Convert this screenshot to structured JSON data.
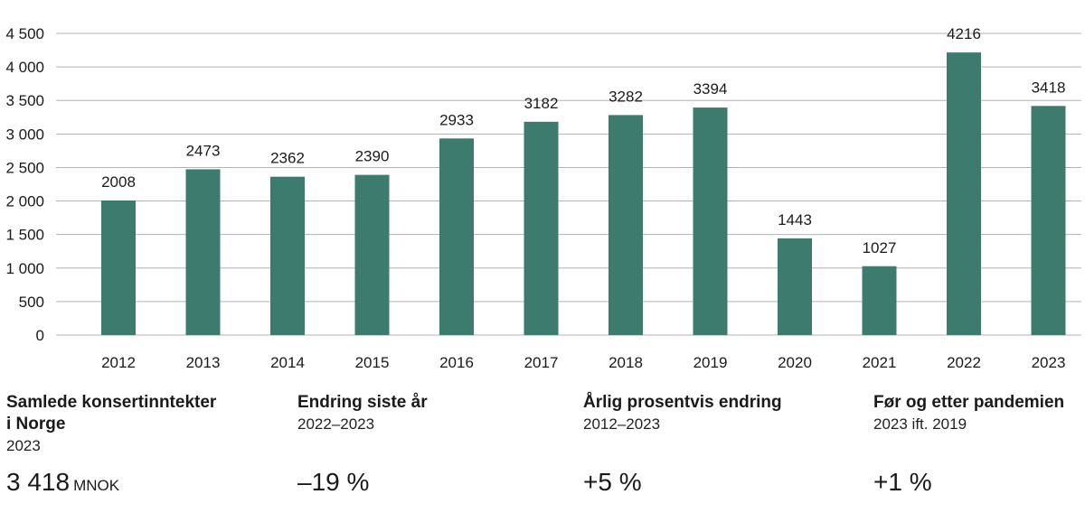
{
  "chart_data": {
    "type": "bar",
    "categories": [
      "2012",
      "2013",
      "2014",
      "2015",
      "2016",
      "2017",
      "2018",
      "2019",
      "2020",
      "2021",
      "2022",
      "2023"
    ],
    "values": [
      2008,
      2473,
      2362,
      2390,
      2933,
      3182,
      3282,
      3394,
      1443,
      1027,
      4216,
      3418
    ],
    "data_labels": [
      "2008",
      "2473",
      "2362",
      "2390",
      "2933",
      "3182",
      "3282",
      "3394",
      "1443",
      "1027",
      "4216",
      "3418"
    ],
    "yticks": [
      0,
      500,
      1000,
      1500,
      2000,
      2500,
      3000,
      3500,
      4000,
      4500
    ],
    "ytick_labels": [
      "0",
      "500",
      "1 000",
      "1 500",
      "2 000",
      "2 500",
      "3 000",
      "3 500",
      "4 000",
      "4 500"
    ],
    "ylim": [
      0,
      4500
    ],
    "grid": true,
    "bar_color": "#3d7b6e",
    "grid_color": "#b3b3b3",
    "title": "",
    "xlabel": "",
    "ylabel": ""
  },
  "stats": [
    {
      "title": "Samlede konsertinntekter\ni Norge",
      "subtitle": "2023",
      "value": "3 418",
      "unit": "MNOK"
    },
    {
      "title": "Endring siste år",
      "subtitle": "2022–2023",
      "value": "–19 %",
      "unit": ""
    },
    {
      "title": "Årlig prosentvis endring",
      "subtitle": "2012–2023",
      "value": "+5 %",
      "unit": ""
    },
    {
      "title": "Før og etter pandemien",
      "subtitle": "2023 ift. 2019",
      "value": "+1 %",
      "unit": ""
    }
  ]
}
